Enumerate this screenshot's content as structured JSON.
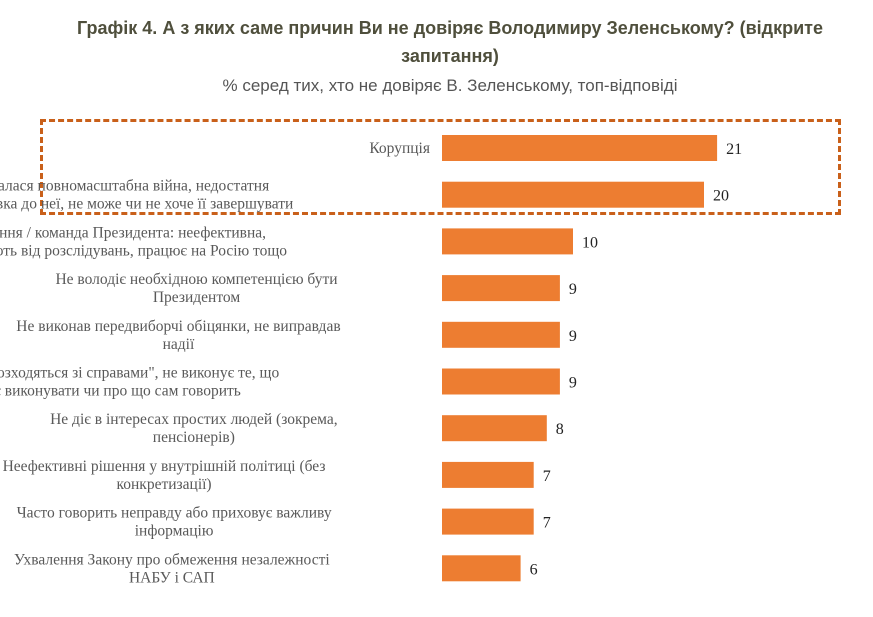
{
  "chart_data": {
    "type": "bar",
    "orientation": "horizontal",
    "title": "Графік 4. А з яких саме причин Ви не довіряє Володимиру Зеленському? (відкрите запитання)",
    "subtitle": "% серед тих, хто не довіряє В. Зеленському, топ-відповіді",
    "categories": [
      [
        "Корупція"
      ],
      [
        "Почалася повномасштабна війна, недостатня",
        "підготовка до неї, не може чи не хоче її завершувати"
      ],
      [
        "Оточення / команда Президента: неефективна,",
        "покривають від розслідувань, працює на Росію тощо"
      ],
      [
        "Не володіє необхідною компетенцією бути",
        "Президентом"
      ],
      [
        "Не виконав передвиборчі обіцянки, не виправдав",
        "надії"
      ],
      [
        "\"Слова розходяться зі справами\", не виконує те, що",
        "має виконувати чи про що сам говорить"
      ],
      [
        "Не діє в інтересах простих людей (зокрема,",
        "пенсіонерів)"
      ],
      [
        "Неефективні рішення у внутрішній політиці (без",
        "конкретизації)"
      ],
      [
        "Часто говорить неправду або приховує важливу",
        "інформацію"
      ],
      [
        "Ухвалення Закону про обмеження незалежності",
        "НАБУ і САП"
      ]
    ],
    "values": [
      21,
      20,
      10,
      9,
      9,
      9,
      8,
      7,
      7,
      6
    ],
    "highlighted_categories": [
      0,
      1
    ],
    "xlim": [
      0,
      25
    ],
    "grid": false,
    "colors": {
      "bar": "#ED7D31",
      "highlight_box": "#C9601A",
      "title": "#4F4F3C"
    }
  }
}
